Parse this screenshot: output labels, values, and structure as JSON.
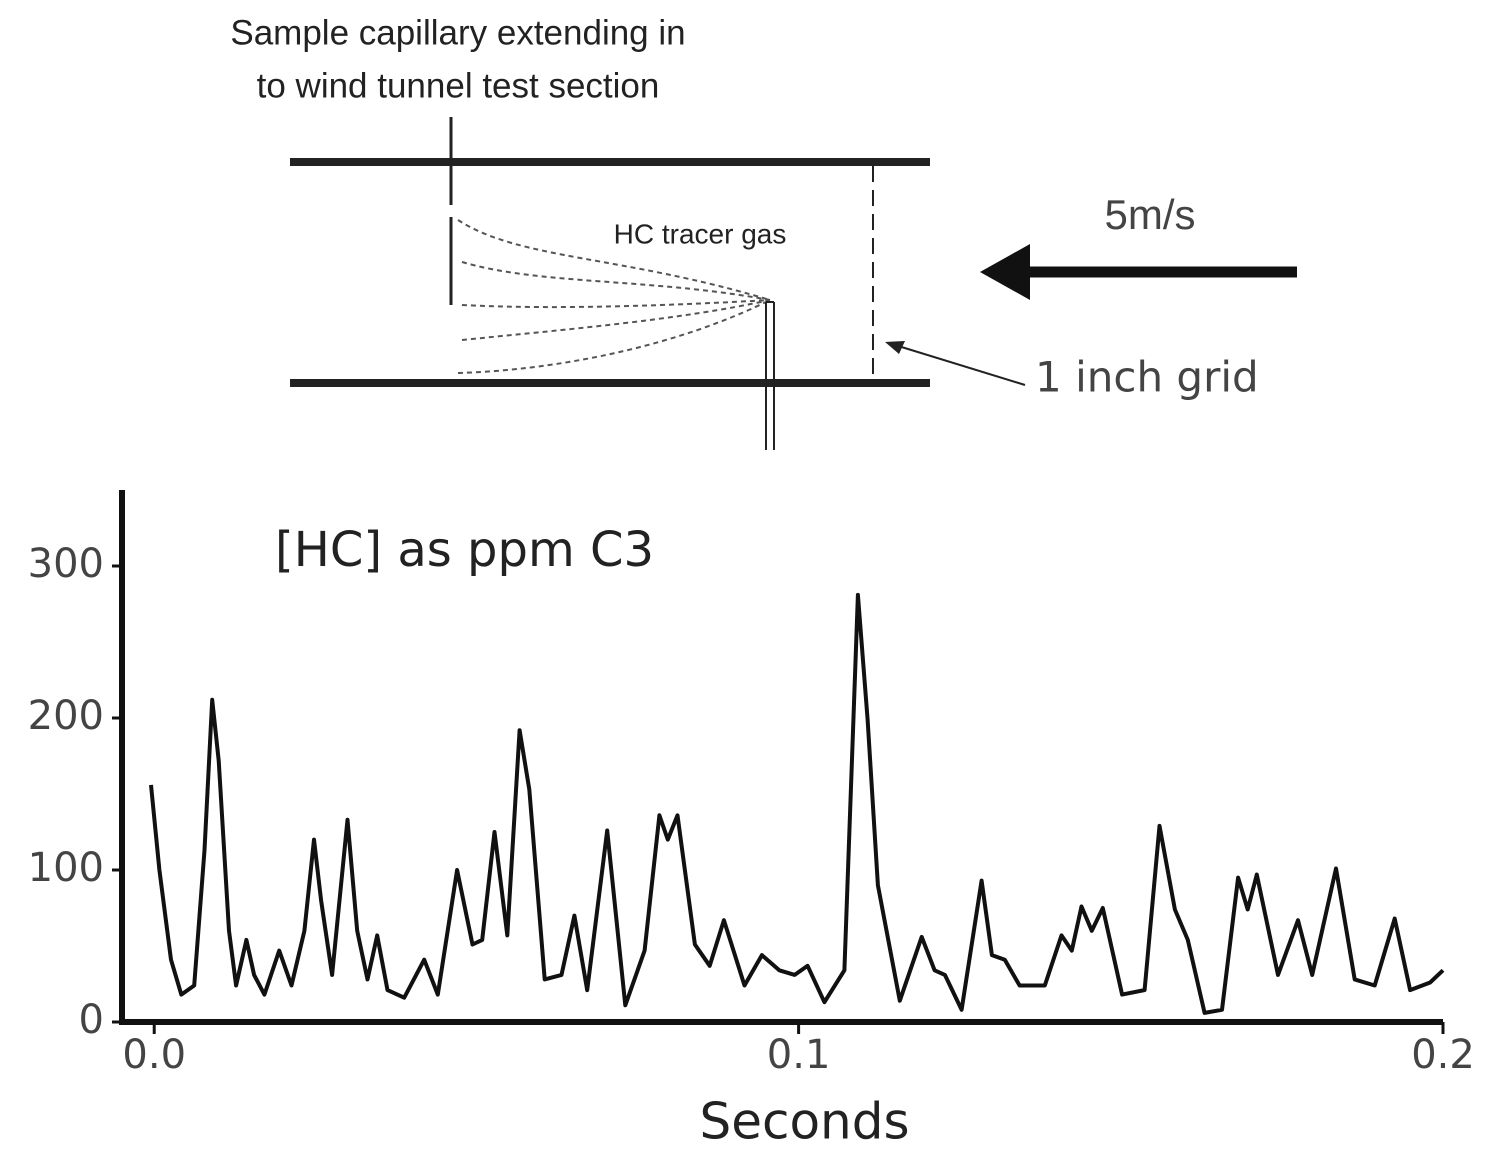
{
  "diagram": {
    "caption_lines": [
      "Sample capillary extending in",
      "to wind tunnel test section"
    ],
    "tracer_label": "HC tracer gas",
    "speed_label": "5m/s",
    "grid_label": "1 inch grid"
  },
  "chart_data": {
    "type": "line",
    "title": "[HC] as ppm C3",
    "x_label": "Seconds",
    "color": "#111111",
    "x": [
      -0.0005,
      0.0008,
      0.0026,
      0.0042,
      0.0062,
      0.0078,
      0.009,
      0.01,
      0.0116,
      0.0127,
      0.0143,
      0.0155,
      0.0171,
      0.0194,
      0.0213,
      0.0233,
      0.0248,
      0.0259,
      0.0276,
      0.03,
      0.0315,
      0.0331,
      0.0346,
      0.0362,
      0.0388,
      0.0419,
      0.044,
      0.047,
      0.0494,
      0.0509,
      0.0528,
      0.0548,
      0.0567,
      0.0582,
      0.0606,
      0.0632,
      0.0652,
      0.0672,
      0.0703,
      0.0731,
      0.0761,
      0.0784,
      0.0797,
      0.0812,
      0.0839,
      0.0862,
      0.0884,
      0.0916,
      0.0943,
      0.097,
      0.0994,
      0.1014,
      0.104,
      0.1071,
      0.1092,
      0.1107,
      0.1123,
      0.1157,
      0.1191,
      0.1211,
      0.1227,
      0.1253,
      0.1284,
      0.13,
      0.132,
      0.1343,
      0.1382,
      0.1408,
      0.1424,
      0.1439,
      0.1455,
      0.1472,
      0.1502,
      0.1537,
      0.156,
      0.1584,
      0.1604,
      0.163,
      0.1657,
      0.1682,
      0.1697,
      0.1711,
      0.1744,
      0.1775,
      0.1797,
      0.1834,
      0.1863,
      0.1894,
      0.1925,
      0.1949,
      0.198,
      0.2
    ],
    "values": [
      156,
      100,
      41,
      18,
      24,
      113,
      212,
      172,
      60,
      24,
      54,
      31,
      18,
      47,
      24,
      60,
      120,
      80,
      31,
      133,
      60,
      28,
      57,
      21,
      16,
      41,
      18,
      100,
      51,
      54,
      125,
      57,
      192,
      153,
      28,
      31,
      70,
      21,
      126,
      11,
      47,
      136,
      120,
      136,
      51,
      37,
      67,
      24,
      44,
      34,
      31,
      37,
      13,
      34,
      281,
      199,
      90,
      14,
      56,
      34,
      31,
      8,
      93,
      44,
      41,
      24,
      24,
      57,
      47,
      76,
      60,
      75,
      18,
      21,
      129,
      74,
      54,
      6,
      8,
      95,
      74,
      97,
      31,
      67,
      31,
      101,
      28,
      24,
      68,
      21,
      26,
      34
    ],
    "xlim": [
      -0.005,
      0.2
    ],
    "ylim": [
      0,
      350
    ],
    "xticks": [
      {
        "value": 0,
        "label": "0.0"
      },
      0.1,
      0.2
    ],
    "yticks": [
      0,
      100,
      200,
      300
    ]
  }
}
